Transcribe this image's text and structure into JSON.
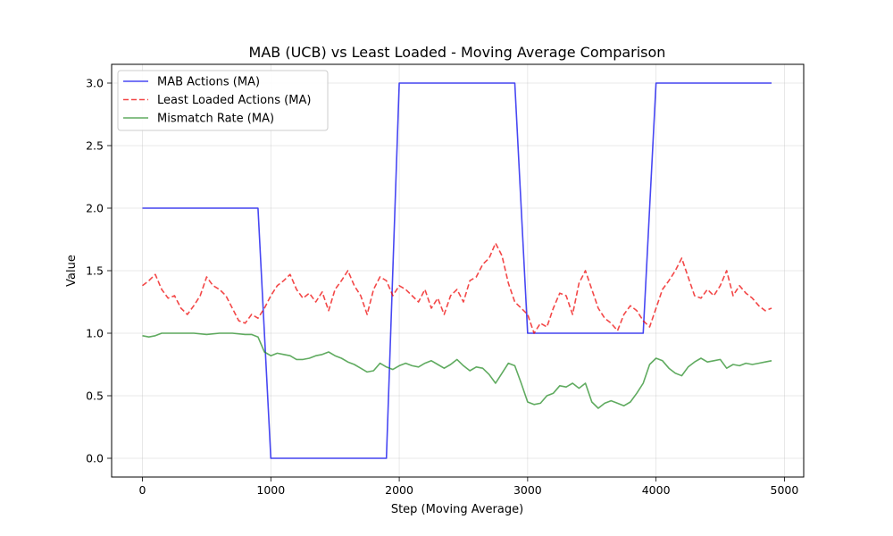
{
  "chart_data": {
    "type": "line",
    "title": "MAB (UCB) vs Least Loaded - Moving Average Comparison",
    "xlabel": "Step (Moving Average)",
    "ylabel": "Value",
    "xlim": [
      -240,
      5150
    ],
    "ylim": [
      -0.15,
      3.15
    ],
    "xticks": [
      0,
      1000,
      2000,
      3000,
      4000,
      5000
    ],
    "xtick_labels": [
      "0",
      "1000",
      "2000",
      "3000",
      "4000",
      "5000"
    ],
    "yticks": [
      0.0,
      0.5,
      1.0,
      1.5,
      2.0,
      2.5,
      3.0
    ],
    "ytick_labels": [
      "0.0",
      "0.5",
      "1.0",
      "1.5",
      "2.0",
      "2.5",
      "3.0"
    ],
    "grid": true,
    "legend_position": "top-left",
    "series": [
      {
        "name": "MAB Actions (MA)",
        "color": "#0000ee",
        "style": "solid",
        "points": [
          [
            0,
            2
          ],
          [
            900,
            2
          ],
          [
            1000,
            0
          ],
          [
            1900,
            0
          ],
          [
            2000,
            3
          ],
          [
            2900,
            3
          ],
          [
            3000,
            1
          ],
          [
            3900,
            1
          ],
          [
            4000,
            3
          ],
          [
            4900,
            3
          ]
        ]
      },
      {
        "name": "Least Loaded Actions (MA)",
        "color": "#ee0000",
        "style": "dashed",
        "points": [
          [
            0,
            1.38
          ],
          [
            50,
            1.42
          ],
          [
            100,
            1.47
          ],
          [
            150,
            1.35
          ],
          [
            200,
            1.28
          ],
          [
            250,
            1.3
          ],
          [
            300,
            1.2
          ],
          [
            350,
            1.15
          ],
          [
            400,
            1.22
          ],
          [
            450,
            1.3
          ],
          [
            500,
            1.45
          ],
          [
            550,
            1.38
          ],
          [
            600,
            1.35
          ],
          [
            650,
            1.3
          ],
          [
            700,
            1.2
          ],
          [
            750,
            1.1
          ],
          [
            800,
            1.08
          ],
          [
            850,
            1.15
          ],
          [
            900,
            1.12
          ],
          [
            950,
            1.2
          ],
          [
            1000,
            1.3
          ],
          [
            1050,
            1.38
          ],
          [
            1100,
            1.42
          ],
          [
            1150,
            1.47
          ],
          [
            1200,
            1.35
          ],
          [
            1250,
            1.28
          ],
          [
            1300,
            1.32
          ],
          [
            1350,
            1.25
          ],
          [
            1400,
            1.33
          ],
          [
            1450,
            1.18
          ],
          [
            1500,
            1.35
          ],
          [
            1550,
            1.42
          ],
          [
            1600,
            1.5
          ],
          [
            1650,
            1.38
          ],
          [
            1700,
            1.3
          ],
          [
            1750,
            1.15
          ],
          [
            1800,
            1.35
          ],
          [
            1850,
            1.45
          ],
          [
            1900,
            1.42
          ],
          [
            1950,
            1.3
          ],
          [
            2000,
            1.38
          ],
          [
            2050,
            1.35
          ],
          [
            2100,
            1.3
          ],
          [
            2150,
            1.25
          ],
          [
            2200,
            1.35
          ],
          [
            2250,
            1.2
          ],
          [
            2300,
            1.28
          ],
          [
            2350,
            1.15
          ],
          [
            2400,
            1.3
          ],
          [
            2450,
            1.35
          ],
          [
            2500,
            1.25
          ],
          [
            2550,
            1.42
          ],
          [
            2600,
            1.45
          ],
          [
            2650,
            1.55
          ],
          [
            2700,
            1.6
          ],
          [
            2750,
            1.72
          ],
          [
            2800,
            1.62
          ],
          [
            2850,
            1.4
          ],
          [
            2900,
            1.25
          ],
          [
            2950,
            1.2
          ],
          [
            3000,
            1.15
          ],
          [
            3050,
            1.0
          ],
          [
            3100,
            1.08
          ],
          [
            3150,
            1.05
          ],
          [
            3200,
            1.2
          ],
          [
            3250,
            1.32
          ],
          [
            3300,
            1.3
          ],
          [
            3350,
            1.15
          ],
          [
            3400,
            1.4
          ],
          [
            3450,
            1.5
          ],
          [
            3500,
            1.35
          ],
          [
            3550,
            1.2
          ],
          [
            3600,
            1.12
          ],
          [
            3650,
            1.08
          ],
          [
            3700,
            1.02
          ],
          [
            3750,
            1.15
          ],
          [
            3800,
            1.22
          ],
          [
            3850,
            1.18
          ],
          [
            3900,
            1.1
          ],
          [
            3950,
            1.05
          ],
          [
            4000,
            1.2
          ],
          [
            4050,
            1.35
          ],
          [
            4100,
            1.42
          ],
          [
            4150,
            1.5
          ],
          [
            4200,
            1.6
          ],
          [
            4250,
            1.45
          ],
          [
            4300,
            1.3
          ],
          [
            4350,
            1.28
          ],
          [
            4400,
            1.35
          ],
          [
            4450,
            1.3
          ],
          [
            4500,
            1.38
          ],
          [
            4550,
            1.5
          ],
          [
            4600,
            1.3
          ],
          [
            4650,
            1.38
          ],
          [
            4700,
            1.32
          ],
          [
            4750,
            1.28
          ],
          [
            4800,
            1.22
          ],
          [
            4850,
            1.18
          ],
          [
            4900,
            1.2
          ]
        ]
      },
      {
        "name": "Mismatch Rate (MA)",
        "color": "#228b22",
        "style": "solid",
        "points": [
          [
            0,
            0.98
          ],
          [
            50,
            0.97
          ],
          [
            100,
            0.98
          ],
          [
            150,
            1.0
          ],
          [
            200,
            1.0
          ],
          [
            300,
            1.0
          ],
          [
            400,
            1.0
          ],
          [
            500,
            0.99
          ],
          [
            600,
            1.0
          ],
          [
            700,
            1.0
          ],
          [
            800,
            0.99
          ],
          [
            850,
            0.99
          ],
          [
            900,
            0.97
          ],
          [
            950,
            0.85
          ],
          [
            1000,
            0.82
          ],
          [
            1050,
            0.84
          ],
          [
            1100,
            0.83
          ],
          [
            1150,
            0.82
          ],
          [
            1200,
            0.79
          ],
          [
            1250,
            0.79
          ],
          [
            1300,
            0.8
          ],
          [
            1350,
            0.82
          ],
          [
            1400,
            0.83
          ],
          [
            1450,
            0.85
          ],
          [
            1500,
            0.82
          ],
          [
            1550,
            0.8
          ],
          [
            1600,
            0.77
          ],
          [
            1650,
            0.75
          ],
          [
            1700,
            0.72
          ],
          [
            1750,
            0.69
          ],
          [
            1800,
            0.7
          ],
          [
            1850,
            0.76
          ],
          [
            1900,
            0.73
          ],
          [
            1950,
            0.71
          ],
          [
            2000,
            0.74
          ],
          [
            2050,
            0.76
          ],
          [
            2100,
            0.74
          ],
          [
            2150,
            0.73
          ],
          [
            2200,
            0.76
          ],
          [
            2250,
            0.78
          ],
          [
            2300,
            0.75
          ],
          [
            2350,
            0.72
          ],
          [
            2400,
            0.75
          ],
          [
            2450,
            0.79
          ],
          [
            2500,
            0.74
          ],
          [
            2550,
            0.7
          ],
          [
            2600,
            0.73
          ],
          [
            2650,
            0.72
          ],
          [
            2700,
            0.67
          ],
          [
            2750,
            0.6
          ],
          [
            2800,
            0.68
          ],
          [
            2850,
            0.76
          ],
          [
            2900,
            0.74
          ],
          [
            2950,
            0.6
          ],
          [
            3000,
            0.45
          ],
          [
            3050,
            0.43
          ],
          [
            3100,
            0.44
          ],
          [
            3150,
            0.5
          ],
          [
            3200,
            0.52
          ],
          [
            3250,
            0.58
          ],
          [
            3300,
            0.57
          ],
          [
            3350,
            0.6
          ],
          [
            3400,
            0.56
          ],
          [
            3450,
            0.6
          ],
          [
            3500,
            0.45
          ],
          [
            3550,
            0.4
          ],
          [
            3600,
            0.44
          ],
          [
            3650,
            0.46
          ],
          [
            3700,
            0.44
          ],
          [
            3750,
            0.42
          ],
          [
            3800,
            0.45
          ],
          [
            3850,
            0.52
          ],
          [
            3900,
            0.6
          ],
          [
            3950,
            0.75
          ],
          [
            4000,
            0.8
          ],
          [
            4050,
            0.78
          ],
          [
            4100,
            0.72
          ],
          [
            4150,
            0.68
          ],
          [
            4200,
            0.66
          ],
          [
            4250,
            0.73
          ],
          [
            4300,
            0.77
          ],
          [
            4350,
            0.8
          ],
          [
            4400,
            0.77
          ],
          [
            4450,
            0.78
          ],
          [
            4500,
            0.79
          ],
          [
            4550,
            0.72
          ],
          [
            4600,
            0.75
          ],
          [
            4650,
            0.74
          ],
          [
            4700,
            0.76
          ],
          [
            4750,
            0.75
          ],
          [
            4800,
            0.76
          ],
          [
            4850,
            0.77
          ],
          [
            4900,
            0.78
          ]
        ]
      }
    ]
  }
}
